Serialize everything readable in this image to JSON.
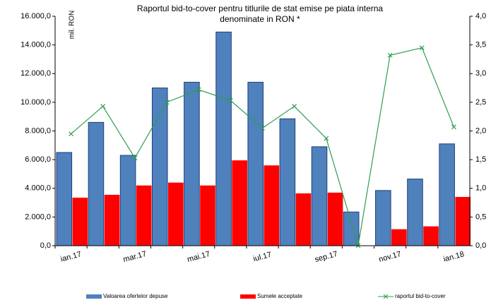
{
  "chart_data": {
    "type": "bar-line",
    "title": [
      "Raportul bid-to-cover pentru titlurile de stat emise pe piata interna",
      "denominate in RON *"
    ],
    "y_label": "mil. RON",
    "categories": [
      "ian.17",
      null,
      "mar.17",
      null,
      "mai.17",
      null,
      "iul.17",
      null,
      "sep.17",
      null,
      "nov.17",
      null,
      "ian.18"
    ],
    "series": [
      {
        "name": "Valoarea ofertelor depuse",
        "color": "#4f81bd",
        "type": "bar",
        "values": [
          6500,
          8600,
          6300,
          11000,
          11400,
          14900,
          11400,
          8850,
          6900,
          2350,
          3850,
          4650,
          7100
        ]
      },
      {
        "name": "Sumele acceptate",
        "color": "#ff0000",
        "type": "bar",
        "values": [
          3350,
          3550,
          4200,
          4400,
          4200,
          5950,
          5600,
          3650,
          3700,
          0,
          1150,
          1350,
          3400
        ]
      },
      {
        "name": "raportul bid-to-cover",
        "color": "#2e9e4f",
        "type": "line",
        "axis": "y2",
        "values": [
          1.95,
          2.43,
          1.53,
          2.5,
          2.72,
          2.53,
          2.05,
          2.43,
          1.87,
          0,
          3.32,
          3.45,
          2.07
        ]
      }
    ],
    "ylim": [
      0,
      16000
    ],
    "yticks": [
      {
        "value": 0,
        "label": "0,0"
      },
      {
        "value": 2000,
        "label": "2.000,0"
      },
      {
        "value": 4000,
        "label": "4.000,0"
      },
      {
        "value": 6000,
        "label": "6.000,0"
      },
      {
        "value": 8000,
        "label": "8.000,0"
      },
      {
        "value": 10000,
        "label": "10.000,0"
      },
      {
        "value": 12000,
        "label": "12.000,0"
      },
      {
        "value": 14000,
        "label": "14.000,0"
      },
      {
        "value": 16000,
        "label": "16.000,0"
      }
    ],
    "y2lim": [
      0,
      4
    ],
    "y2ticks": [
      {
        "value": 0,
        "label": "0,0"
      },
      {
        "value": 0.5,
        "label": "0,5"
      },
      {
        "value": 1,
        "label": "1,0"
      },
      {
        "value": 1.5,
        "label": "1,5"
      },
      {
        "value": 2,
        "label": "2,0"
      },
      {
        "value": 2.5,
        "label": "2,5"
      },
      {
        "value": 3,
        "label": "3,0"
      },
      {
        "value": 3.5,
        "label": "3,5"
      },
      {
        "value": 4,
        "label": "4,0"
      }
    ]
  }
}
